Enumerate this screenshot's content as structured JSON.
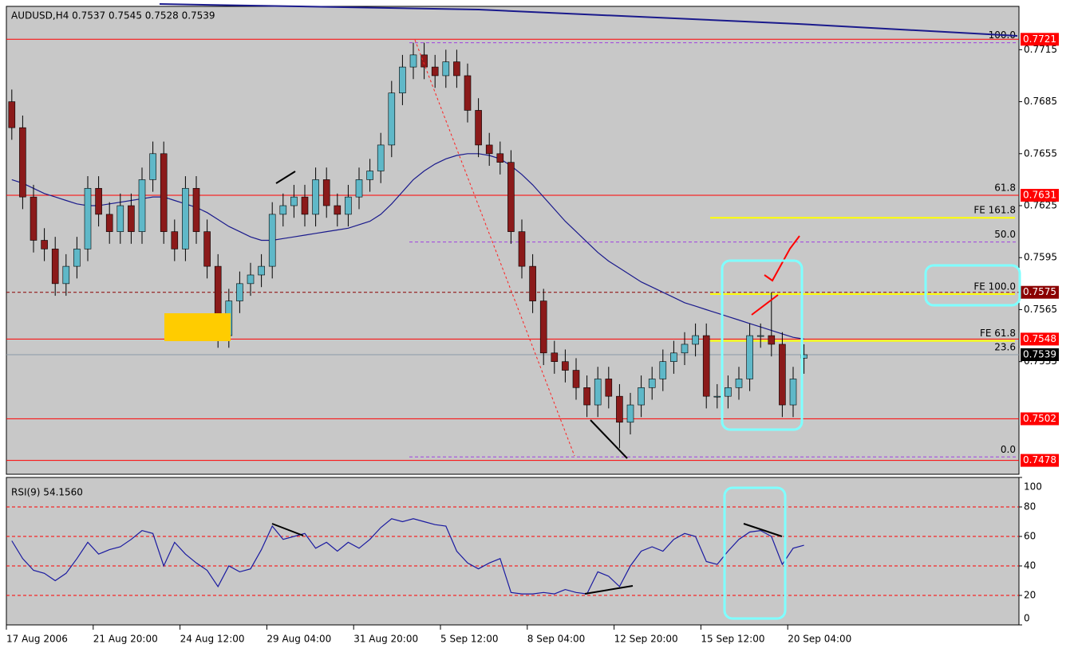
{
  "chart_data": [
    {
      "type": "candlestick",
      "title": "AUDUSD,H4 0.7537 0.7545 0.7528 0.7539",
      "bull_color": "#5fb8c8",
      "bear_color": "#8b1a1a",
      "ylim": [
        0.747,
        0.774
      ],
      "yticks": [
        0.7715,
        0.7685,
        0.7655,
        0.7625,
        0.7595,
        0.7565,
        0.7535
      ],
      "xticks": [
        {
          "value": 0,
          "label": "17 Aug 2006"
        },
        {
          "value": 8,
          "label": "21 Aug 20:00"
        },
        {
          "value": 16,
          "label": "24 Aug 12:00"
        },
        {
          "value": 24,
          "label": "29 Aug 04:00"
        },
        {
          "value": 32,
          "label": "31 Aug 20:00"
        },
        {
          "value": 40,
          "label": "5 Sep 12:00"
        },
        {
          "value": 48,
          "label": "8 Sep 04:00"
        },
        {
          "value": 56,
          "label": "12 Sep 20:00"
        },
        {
          "value": 64,
          "label": "15 Sep 12:00"
        },
        {
          "value": 72,
          "label": "20 Sep 04:00"
        }
      ],
      "open": [
        0.7685,
        0.767,
        0.763,
        0.7605,
        0.76,
        0.758,
        0.759,
        0.76,
        0.7635,
        0.762,
        0.761,
        0.7625,
        0.761,
        0.764,
        0.7655,
        0.761,
        0.76,
        0.7635,
        0.761,
        0.759,
        0.755,
        0.757,
        0.758,
        0.7585,
        0.759,
        0.762,
        0.7625,
        0.763,
        0.762,
        0.764,
        0.7625,
        0.762,
        0.763,
        0.764,
        0.7645,
        0.766,
        0.769,
        0.7705,
        0.7712,
        0.7705,
        0.77,
        0.7708,
        0.77,
        0.768,
        0.766,
        0.7655,
        0.765,
        0.761,
        0.759,
        0.757,
        0.754,
        0.7535,
        0.753,
        0.752,
        0.751,
        0.7525,
        0.7515,
        0.75,
        0.751,
        0.752,
        0.7525,
        0.7535,
        0.754,
        0.7545,
        0.755,
        0.7515,
        0.7515,
        0.752,
        0.7525,
        0.755,
        0.755,
        0.7545,
        0.751,
        0.7537
      ],
      "high": [
        0.7692,
        0.7677,
        0.7637,
        0.7612,
        0.7607,
        0.7597,
        0.7607,
        0.7642,
        0.7642,
        0.7627,
        0.7632,
        0.7632,
        0.7647,
        0.7662,
        0.7662,
        0.7617,
        0.7642,
        0.7642,
        0.7617,
        0.7597,
        0.7577,
        0.7587,
        0.7592,
        0.7597,
        0.7627,
        0.7632,
        0.7637,
        0.7637,
        0.7647,
        0.7647,
        0.7632,
        0.7637,
        0.7647,
        0.7652,
        0.7667,
        0.7697,
        0.7712,
        0.7719,
        0.7719,
        0.7712,
        0.7715,
        0.7715,
        0.7707,
        0.7687,
        0.7667,
        0.7662,
        0.7657,
        0.7617,
        0.7597,
        0.7577,
        0.7547,
        0.7542,
        0.7537,
        0.7527,
        0.7532,
        0.7532,
        0.7522,
        0.7517,
        0.7527,
        0.7532,
        0.7542,
        0.7547,
        0.7552,
        0.7557,
        0.7557,
        0.7522,
        0.7527,
        0.7532,
        0.7557,
        0.7557,
        0.7575,
        0.7552,
        0.7532,
        0.7545
      ],
      "low": [
        0.7663,
        0.7623,
        0.7598,
        0.7593,
        0.7573,
        0.7573,
        0.7583,
        0.7593,
        0.7613,
        0.7603,
        0.7603,
        0.7603,
        0.7603,
        0.7633,
        0.7603,
        0.7593,
        0.7593,
        0.7603,
        0.7583,
        0.7543,
        0.7543,
        0.7563,
        0.7573,
        0.7578,
        0.7583,
        0.7613,
        0.7618,
        0.7613,
        0.7613,
        0.7618,
        0.7613,
        0.7613,
        0.7623,
        0.7633,
        0.7638,
        0.7653,
        0.7683,
        0.7698,
        0.7698,
        0.7693,
        0.7693,
        0.7693,
        0.7673,
        0.7653,
        0.7648,
        0.7643,
        0.7603,
        0.7583,
        0.7563,
        0.7533,
        0.7528,
        0.7523,
        0.7513,
        0.7503,
        0.7503,
        0.7508,
        0.7485,
        0.7493,
        0.7503,
        0.7513,
        0.7518,
        0.7528,
        0.7533,
        0.7538,
        0.7508,
        0.7508,
        0.7508,
        0.7513,
        0.7518,
        0.7543,
        0.7538,
        0.7503,
        0.7503,
        0.7528
      ],
      "close": [
        0.767,
        0.763,
        0.7605,
        0.76,
        0.758,
        0.759,
        0.76,
        0.7635,
        0.762,
        0.761,
        0.7625,
        0.761,
        0.764,
        0.7655,
        0.761,
        0.76,
        0.7635,
        0.761,
        0.759,
        0.755,
        0.757,
        0.758,
        0.7585,
        0.759,
        0.762,
        0.7625,
        0.763,
        0.762,
        0.764,
        0.7625,
        0.762,
        0.763,
        0.764,
        0.7645,
        0.766,
        0.769,
        0.7705,
        0.7712,
        0.7705,
        0.77,
        0.7708,
        0.77,
        0.768,
        0.766,
        0.7655,
        0.765,
        0.761,
        0.759,
        0.757,
        0.754,
        0.7535,
        0.753,
        0.752,
        0.751,
        0.7525,
        0.7515,
        0.75,
        0.751,
        0.752,
        0.7525,
        0.7535,
        0.754,
        0.7545,
        0.755,
        0.7515,
        0.7515,
        0.752,
        0.7525,
        0.755,
        0.755,
        0.7545,
        0.751,
        0.7525,
        0.7539
      ],
      "ma": {
        "color": "#1a1a8c",
        "values": [
          0.764,
          0.7638,
          0.7635,
          0.7632,
          0.763,
          0.7628,
          0.7626,
          0.7625,
          0.7625,
          0.7626,
          0.7627,
          0.7628,
          0.7629,
          0.763,
          0.763,
          0.7628,
          0.7626,
          0.7624,
          0.7621,
          0.7617,
          0.7613,
          0.761,
          0.7607,
          0.7605,
          0.7605,
          0.7606,
          0.7607,
          0.7608,
          0.7609,
          0.761,
          0.7611,
          0.7612,
          0.7614,
          0.7616,
          0.762,
          0.7626,
          0.7633,
          0.764,
          0.7645,
          0.7649,
          0.7652,
          0.7654,
          0.7655,
          0.7655,
          0.7654,
          0.7652,
          0.7648,
          0.7643,
          0.7637,
          0.763,
          0.7623,
          0.7616,
          0.761,
          0.7604,
          0.7598,
          0.7593,
          0.7589,
          0.7585,
          0.7581,
          0.7578,
          0.7575,
          0.7572,
          0.7569,
          0.7567,
          0.7565,
          0.7563,
          0.7561,
          0.7559,
          0.7557,
          0.7555,
          0.7553,
          0.7551,
          0.7549,
          0.7548
        ]
      },
      "price_lines": [
        {
          "value": 0.7721,
          "color": "#ff0000",
          "dashed": false
        },
        {
          "value": 0.7631,
          "color": "#ff0000",
          "dashed": false
        },
        {
          "value": 0.7575,
          "color": "#8b0000",
          "dashed": true
        },
        {
          "value": 0.7548,
          "color": "#ff0000",
          "dashed": false
        },
        {
          "value": 0.7539,
          "color": "#000000",
          "dashed": false
        },
        {
          "value": 0.7502,
          "color": "#ff0000",
          "dashed": false
        },
        {
          "value": 0.7478,
          "color": "#ff0000",
          "dashed": false
        }
      ],
      "fib_levels": [
        {
          "label": "100.0",
          "value": 0.7719
        },
        {
          "label": "61.8",
          "value": 0.7631
        },
        {
          "label": "50.0",
          "value": 0.7604
        },
        {
          "label": "23.6",
          "value": 0.7539
        },
        {
          "label": "0.0",
          "value": 0.748
        }
      ],
      "fe_levels": [
        {
          "label": "FE 161.8",
          "value": 0.7618
        },
        {
          "label": "FE 100.0",
          "value": 0.7574
        },
        {
          "label": "FE 61.8",
          "value": 0.7547
        }
      ]
    },
    {
      "type": "line",
      "title": "RSI(9) 54.1560",
      "color": "#1a1aa0",
      "ylim": [
        0,
        100
      ],
      "yticks": [
        100,
        80,
        60,
        40,
        20,
        0
      ],
      "grid_levels": [
        80,
        60,
        40,
        20
      ],
      "values": [
        57,
        45,
        37,
        35,
        30,
        35,
        45,
        56,
        48,
        51,
        53,
        58,
        64,
        62,
        40,
        56,
        48,
        42,
        37,
        26,
        40,
        36,
        38,
        51,
        67,
        58,
        60,
        62,
        52,
        56,
        50,
        56,
        52,
        58,
        66,
        72,
        70,
        72,
        70,
        68,
        67,
        50,
        42,
        38,
        42,
        45,
        22,
        21,
        21,
        22,
        21,
        24,
        22,
        21,
        36,
        33,
        26,
        40,
        50,
        53,
        50,
        58,
        62,
        60,
        43,
        41,
        50,
        58,
        63,
        64,
        60,
        41,
        52,
        54
      ]
    }
  ]
}
